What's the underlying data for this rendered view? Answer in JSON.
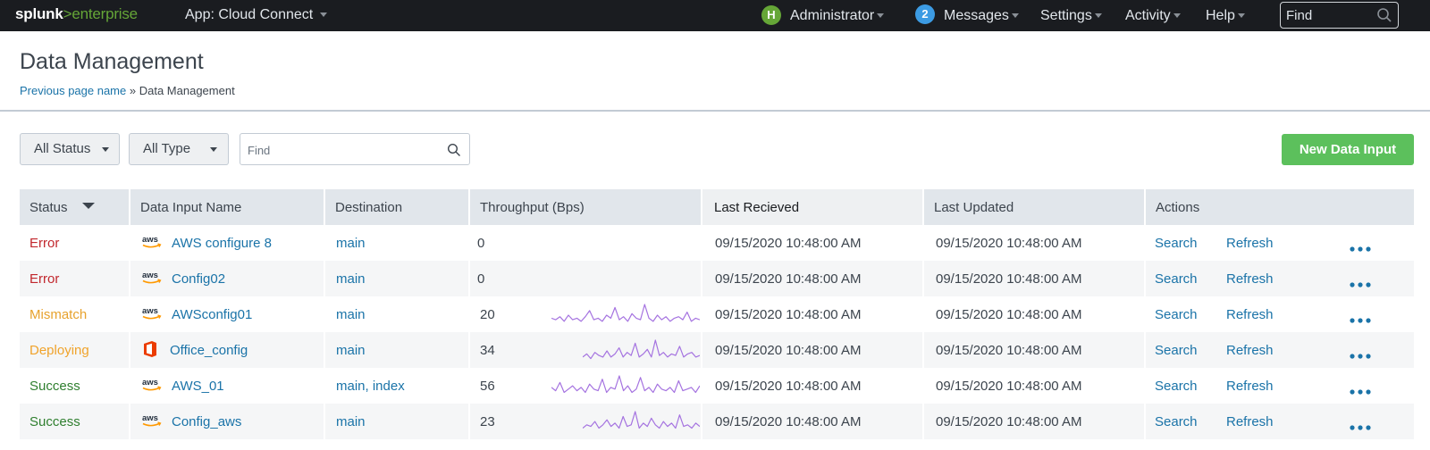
{
  "topbar": {
    "brand_primary": "splunk",
    "brand_arrow": ">",
    "brand_secondary": "enterprise",
    "app_label": "App: Cloud Connect",
    "user_initial": "H",
    "user_label": "Administrator",
    "messages_count": "2",
    "messages_label": "Messages",
    "settings_label": "Settings",
    "activity_label": "Activity",
    "help_label": "Help",
    "find_placeholder": "Find"
  },
  "page": {
    "title": "Data Management",
    "breadcrumb_link": "Previous page name",
    "breadcrumb_separator": "»",
    "breadcrumb_current": "Data Management"
  },
  "controls": {
    "status_filter": "All Status",
    "type_filter": "All Type",
    "find_placeholder": "Find",
    "new_button": "New Data Input"
  },
  "table": {
    "columns": [
      "Status",
      "Data Input Name",
      "Destination",
      "Throughput (Bps)",
      "Last Recieved",
      "Last Updated",
      "Actions"
    ],
    "rows": [
      {
        "status": "Error",
        "status_kind": "error",
        "icon": "aws-icon",
        "name": "AWS configure 8",
        "destination": "main",
        "throughput": "0",
        "sparkline": null,
        "last_received": "09/15/2020 10:48:00 AM",
        "last_updated": "09/15/2020 10:48:00 AM",
        "action_search": "Search",
        "action_refresh": "Refresh"
      },
      {
        "status": "Error",
        "status_kind": "error",
        "icon": "aws-icon",
        "name": "Config02",
        "destination": "main",
        "throughput": "0",
        "sparkline": null,
        "last_received": "09/15/2020 10:48:00 AM",
        "last_updated": "09/15/2020 10:48:00 AM",
        "action_search": "Search",
        "action_refresh": "Refresh"
      },
      {
        "status": "Mismatch",
        "status_kind": "mismatch",
        "icon": "aws-icon",
        "name": "AWSconfig01",
        "destination": "main",
        "throughput": "20",
        "sparkline": [
          5,
          4,
          6,
          3,
          7,
          4,
          5,
          3,
          6,
          10,
          4,
          5,
          3,
          7,
          5,
          12,
          4,
          6,
          3,
          8,
          5,
          4,
          14,
          5,
          3,
          7,
          4,
          6,
          3,
          5,
          6,
          4,
          9,
          3,
          5,
          4
        ],
        "last_received": "09/15/2020 10:48:00 AM",
        "last_updated": "09/15/2020 10:48:00 AM",
        "action_search": "Search",
        "action_refresh": "Refresh"
      },
      {
        "status": "Deploying",
        "status_kind": "deploying",
        "icon": "office-icon",
        "name": "Office_config",
        "destination": "main",
        "throughput": "34",
        "sparkline": [
          3,
          5,
          2,
          6,
          4,
          3,
          7,
          3,
          5,
          9,
          3,
          6,
          4,
          12,
          3,
          5,
          8,
          3,
          14,
          4,
          6,
          3,
          5,
          4,
          10,
          3,
          5,
          6,
          3,
          4
        ],
        "last_received": "09/15/2020 10:48:00 AM",
        "last_updated": "09/15/2020 10:48:00 AM",
        "action_search": "Search",
        "action_refresh": "Refresh"
      },
      {
        "status": "Success",
        "status_kind": "success",
        "icon": "aws-icon",
        "name": "AWS_01",
        "destination": "main, index",
        "throughput": "56",
        "sparkline": [
          6,
          4,
          9,
          3,
          5,
          7,
          4,
          6,
          3,
          8,
          5,
          4,
          11,
          3,
          6,
          5,
          13,
          4,
          7,
          3,
          5,
          12,
          4,
          6,
          3,
          8,
          5,
          4,
          6,
          3,
          10,
          4,
          5,
          6,
          3,
          7
        ],
        "last_received": "09/15/2020 10:48:00 AM",
        "last_updated": "09/15/2020 10:48:00 AM",
        "action_search": "Search",
        "action_refresh": "Refresh"
      },
      {
        "status": "Success",
        "status_kind": "success",
        "icon": "aws-icon",
        "name": "Config_aws",
        "destination": "main",
        "throughput": "23",
        "sparkline": [
          3,
          5,
          4,
          7,
          3,
          5,
          8,
          4,
          6,
          3,
          10,
          4,
          5,
          13,
          3,
          6,
          4,
          9,
          5,
          3,
          7,
          4,
          6,
          3,
          11,
          4,
          5,
          3,
          6,
          4
        ],
        "last_received": "09/15/2020 10:48:00 AM",
        "last_updated": "09/15/2020 10:48:00 AM",
        "action_search": "Search",
        "action_refresh": "Refresh"
      }
    ]
  },
  "colors": {
    "accent_green": "#5cc05c",
    "link_blue": "#1a73a8",
    "error": "#c1272d",
    "mismatch": "#e7a22d",
    "deploying": "#f0a32b",
    "success": "#2f7f2f",
    "sparkline": "#a573e0"
  }
}
